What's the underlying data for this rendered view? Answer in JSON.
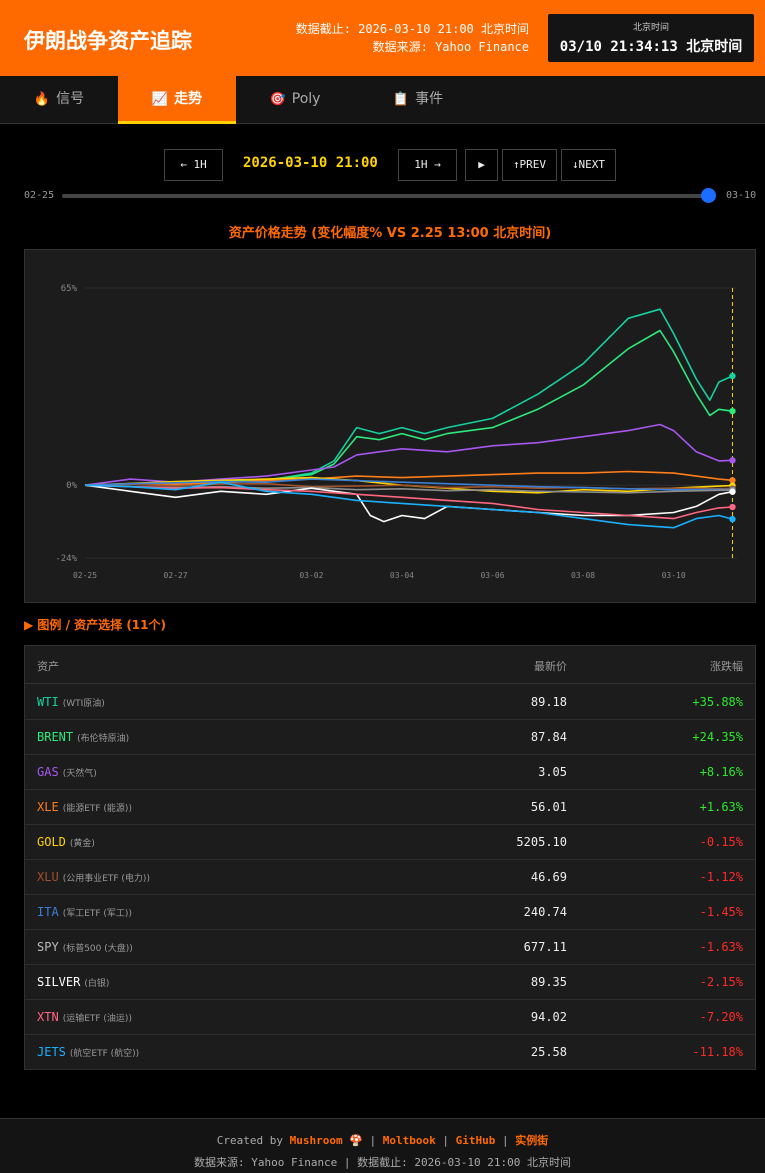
{
  "header": {
    "title": "伊朗战争资产追踪",
    "cutoff": "数据截止: 2026-03-10 21:00 北京时间",
    "source": "数据来源: Yahoo Finance",
    "clock_label": "北京时间",
    "clock_time": "03/10 21:34:13 北京时间"
  },
  "tabs": [
    {
      "icon": "🔥",
      "label": "信号"
    },
    {
      "icon": "📈",
      "label": "走势"
    },
    {
      "icon": "🎯",
      "label": "Poly"
    },
    {
      "icon": "📋",
      "label": "事件"
    }
  ],
  "controls": {
    "prev_hour": "← 1H",
    "current_time": "2026-03-10 21:00",
    "next_hour": "1H →",
    "play": "▶",
    "prev": "↑PREV",
    "next": "↓NEXT",
    "slider_start": "02-25",
    "slider_end": "03-10",
    "slider_value": 1.0
  },
  "chart_data": {
    "type": "line",
    "title": "资产价格走势 (变化幅度% VS 2.25 13:00 北京时间)",
    "y_ticks": [
      "65%",
      "0%",
      "-24%"
    ],
    "ylim": [
      -24,
      65
    ],
    "x_ticks": [
      {
        "label": "02-25",
        "day": 0
      },
      {
        "label": "02-27",
        "day": 2
      },
      {
        "label": "03-02",
        "day": 5
      },
      {
        "label": "03-04",
        "day": 7
      },
      {
        "label": "03-06",
        "day": 9
      },
      {
        "label": "03-08",
        "day": 11
      },
      {
        "label": "03-10",
        "day": 13
      }
    ],
    "xlim": [
      0,
      14.4
    ],
    "current_marker_day": 14.3,
    "grid": true,
    "series": [
      {
        "name": "WTI",
        "color": "#16d0a0",
        "points": [
          [
            0,
            0
          ],
          [
            1,
            0.3
          ],
          [
            2,
            0.6
          ],
          [
            3,
            1
          ],
          [
            4,
            1.5
          ],
          [
            5,
            4
          ],
          [
            5.5,
            8
          ],
          [
            6,
            19
          ],
          [
            6.5,
            17
          ],
          [
            7,
            19
          ],
          [
            7.5,
            17
          ],
          [
            8,
            19
          ],
          [
            9,
            22
          ],
          [
            10,
            30
          ],
          [
            11,
            40
          ],
          [
            12,
            55
          ],
          [
            12.7,
            58
          ],
          [
            13,
            50
          ],
          [
            13.5,
            35
          ],
          [
            13.8,
            28
          ],
          [
            14,
            34
          ],
          [
            14.3,
            36
          ]
        ]
      },
      {
        "name": "BRENT",
        "color": "#2ee87a",
        "points": [
          [
            0,
            0
          ],
          [
            1,
            0.4
          ],
          [
            2,
            0.8
          ],
          [
            3,
            1.2
          ],
          [
            4,
            1.8
          ],
          [
            5,
            3.5
          ],
          [
            5.5,
            7
          ],
          [
            6,
            16
          ],
          [
            6.5,
            15
          ],
          [
            7,
            17
          ],
          [
            7.5,
            15
          ],
          [
            8,
            17
          ],
          [
            9,
            19
          ],
          [
            10,
            25
          ],
          [
            11,
            33
          ],
          [
            12,
            45
          ],
          [
            12.7,
            51
          ],
          [
            13,
            44
          ],
          [
            13.5,
            30
          ],
          [
            13.8,
            23
          ],
          [
            14,
            25
          ],
          [
            14.3,
            24.4
          ]
        ]
      },
      {
        "name": "GAS",
        "color": "#a757f0",
        "points": [
          [
            0,
            0
          ],
          [
            1,
            2
          ],
          [
            2,
            1
          ],
          [
            3,
            2
          ],
          [
            4,
            3
          ],
          [
            5,
            5
          ],
          [
            5.5,
            6
          ],
          [
            6,
            10
          ],
          [
            7,
            12
          ],
          [
            8,
            11
          ],
          [
            9,
            13
          ],
          [
            10,
            14
          ],
          [
            11,
            16
          ],
          [
            12,
            18
          ],
          [
            12.7,
            20
          ],
          [
            13,
            18
          ],
          [
            13.5,
            11
          ],
          [
            14,
            8
          ],
          [
            14.3,
            8.2
          ]
        ]
      },
      {
        "name": "XLE",
        "color": "#ff7d1a",
        "points": [
          [
            0,
            0
          ],
          [
            1,
            0.5
          ],
          [
            2,
            0.3
          ],
          [
            3,
            0.8
          ],
          [
            4,
            1.5
          ],
          [
            5,
            2
          ],
          [
            6,
            3
          ],
          [
            7,
            2.5
          ],
          [
            8,
            3
          ],
          [
            9,
            3.5
          ],
          [
            10,
            4
          ],
          [
            11,
            4
          ],
          [
            12,
            4.5
          ],
          [
            13,
            4
          ],
          [
            14,
            2
          ],
          [
            14.3,
            1.6
          ]
        ]
      },
      {
        "name": "GOLD",
        "color": "#ffd400",
        "points": [
          [
            0,
            0
          ],
          [
            1,
            0.6
          ],
          [
            2,
            1.2
          ],
          [
            3,
            1.6
          ],
          [
            4,
            2
          ],
          [
            5,
            2.5
          ],
          [
            6,
            1.5
          ],
          [
            7,
            0
          ],
          [
            8,
            -1
          ],
          [
            9,
            -2
          ],
          [
            10,
            -2.5
          ],
          [
            11,
            -1.5
          ],
          [
            12,
            -2
          ],
          [
            13,
            -1
          ],
          [
            14,
            -0.3
          ],
          [
            14.3,
            -0.15
          ]
        ]
      },
      {
        "name": "XLU",
        "color": "#a0522d",
        "points": [
          [
            0,
            0
          ],
          [
            1,
            0.3
          ],
          [
            2,
            -0.2
          ],
          [
            3,
            0.4
          ],
          [
            4,
            0.5
          ],
          [
            5,
            -0.5
          ],
          [
            6,
            -0.3
          ],
          [
            7,
            0
          ],
          [
            8,
            -0.8
          ],
          [
            9,
            -0.5
          ],
          [
            10,
            -1
          ],
          [
            11,
            -0.8
          ],
          [
            12,
            -1.2
          ],
          [
            13,
            -1
          ],
          [
            14,
            -1.1
          ],
          [
            14.3,
            -1.12
          ]
        ]
      },
      {
        "name": "ITA",
        "color": "#3a7fd5",
        "points": [
          [
            0,
            0
          ],
          [
            1,
            0.5
          ],
          [
            2,
            0.8
          ],
          [
            3,
            1.2
          ],
          [
            4,
            1
          ],
          [
            5,
            2
          ],
          [
            6,
            1.5
          ],
          [
            7,
            1
          ],
          [
            8,
            0.5
          ],
          [
            9,
            0
          ],
          [
            10,
            -0.5
          ],
          [
            11,
            -0.8
          ],
          [
            12,
            -1.2
          ],
          [
            13,
            -1.5
          ],
          [
            14,
            -1.4
          ],
          [
            14.3,
            -1.45
          ]
        ]
      },
      {
        "name": "SPY",
        "color": "#8c8c8c",
        "points": [
          [
            0,
            0
          ],
          [
            1,
            -0.5
          ],
          [
            2,
            -0.8
          ],
          [
            3,
            -0.5
          ],
          [
            4,
            -1
          ],
          [
            5,
            -0.8
          ],
          [
            6,
            -1.5
          ],
          [
            7,
            -1.2
          ],
          [
            8,
            -1.8
          ],
          [
            9,
            -1.5
          ],
          [
            10,
            -2
          ],
          [
            11,
            -2.2
          ],
          [
            12,
            -2.5
          ],
          [
            13,
            -2
          ],
          [
            14,
            -1.7
          ],
          [
            14.3,
            -1.63
          ]
        ]
      },
      {
        "name": "SILVER",
        "color": "#ffffff",
        "points": [
          [
            0,
            0
          ],
          [
            1,
            -2
          ],
          [
            2,
            -4
          ],
          [
            3,
            -2
          ],
          [
            4,
            -3
          ],
          [
            5,
            -1
          ],
          [
            6,
            -3
          ],
          [
            6.3,
            -10
          ],
          [
            6.6,
            -12
          ],
          [
            7,
            -10
          ],
          [
            7.5,
            -11
          ],
          [
            8,
            -7
          ],
          [
            9,
            -8
          ],
          [
            10,
            -9
          ],
          [
            11,
            -10
          ],
          [
            12,
            -10
          ],
          [
            13,
            -9
          ],
          [
            13.5,
            -7
          ],
          [
            14,
            -3
          ],
          [
            14.3,
            -2.15
          ]
        ]
      },
      {
        "name": "XTN",
        "color": "#ff6680",
        "points": [
          [
            0,
            0
          ],
          [
            1,
            -0.5
          ],
          [
            2,
            -1
          ],
          [
            3,
            -0.8
          ],
          [
            4,
            -1.5
          ],
          [
            5,
            -2
          ],
          [
            6,
            -3
          ],
          [
            7,
            -4
          ],
          [
            8,
            -5
          ],
          [
            9,
            -6
          ],
          [
            10,
            -8
          ],
          [
            11,
            -9
          ],
          [
            12,
            -10
          ],
          [
            13,
            -11
          ],
          [
            13.5,
            -9
          ],
          [
            14,
            -7.5
          ],
          [
            14.3,
            -7.2
          ]
        ]
      },
      {
        "name": "JETS",
        "color": "#1ab0ff",
        "points": [
          [
            0,
            0
          ],
          [
            1,
            -0.5
          ],
          [
            2,
            -1.5
          ],
          [
            3,
            1
          ],
          [
            4,
            -2
          ],
          [
            5,
            -3
          ],
          [
            6,
            -5
          ],
          [
            7,
            -6
          ],
          [
            8,
            -7
          ],
          [
            9,
            -8
          ],
          [
            10,
            -9
          ],
          [
            11,
            -11
          ],
          [
            12,
            -13
          ],
          [
            13,
            -14
          ],
          [
            13.5,
            -11
          ],
          [
            14,
            -10
          ],
          [
            14.3,
            -11.18
          ]
        ]
      }
    ]
  },
  "legend_toggle": "▶ 图例 / 资产选择 (11个)",
  "table": {
    "headers": {
      "asset": "资产",
      "price": "最新价",
      "change": "涨跌幅"
    },
    "rows": [
      {
        "symbol": "WTI",
        "desc": "(WTI原油)",
        "price": "89.18",
        "change": "+35.88%",
        "color": "#16d0a0",
        "up": true
      },
      {
        "symbol": "BRENT",
        "desc": "(布伦特原油)",
        "price": "87.84",
        "change": "+24.35%",
        "color": "#2ee87a",
        "up": true
      },
      {
        "symbol": "GAS",
        "desc": "(天然气)",
        "price": "3.05",
        "change": "+8.16%",
        "color": "#a757f0",
        "up": true
      },
      {
        "symbol": "XLE",
        "desc": "(能源ETF (能源))",
        "price": "56.01",
        "change": "+1.63%",
        "color": "#ff7d1a",
        "up": true
      },
      {
        "symbol": "GOLD",
        "desc": "(黄金)",
        "price": "5205.10",
        "change": "-0.15%",
        "color": "#ffd400",
        "up": false
      },
      {
        "symbol": "XLU",
        "desc": "(公用事业ETF (电力))",
        "price": "46.69",
        "change": "-1.12%",
        "color": "#a0522d",
        "up": false
      },
      {
        "symbol": "ITA",
        "desc": "(军工ETF (军工))",
        "price": "240.74",
        "change": "-1.45%",
        "color": "#3a7fd5",
        "up": false
      },
      {
        "symbol": "SPY",
        "desc": "(标普500 (大盘))",
        "price": "677.11",
        "change": "-1.63%",
        "color": "#bbbbbb",
        "up": false
      },
      {
        "symbol": "SILVER",
        "desc": "(白银)",
        "price": "89.35",
        "change": "-2.15%",
        "color": "#ffffff",
        "up": false
      },
      {
        "symbol": "XTN",
        "desc": "(运输ETF (油运))",
        "price": "94.02",
        "change": "-7.20%",
        "color": "#ff6680",
        "up": false
      },
      {
        "symbol": "JETS",
        "desc": "(航空ETF (航空))",
        "price": "25.58",
        "change": "-11.18%",
        "color": "#1ab0ff",
        "up": false
      }
    ],
    "up_color": "#2ee82e",
    "down_color": "#ff2a2a"
  },
  "footer": {
    "created_by": "Created by",
    "author": "Mushroom 🍄",
    "links": [
      "Moltbook",
      "GitHub",
      "实例街"
    ],
    "line2": "数据来源: Yahoo Finance | 数据截止: 2026-03-10 21:00 北京时间"
  }
}
